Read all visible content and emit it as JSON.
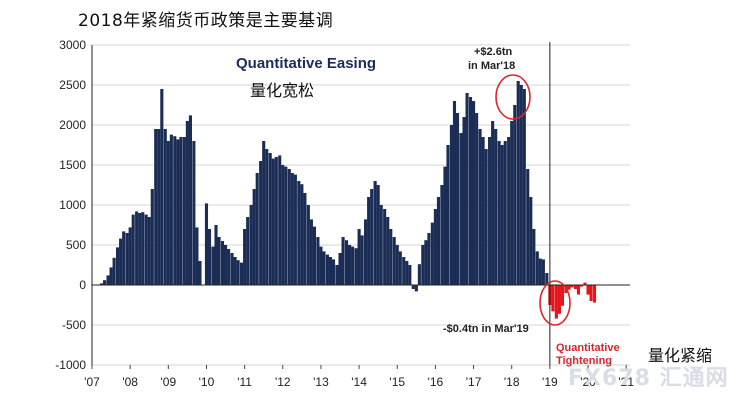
{
  "heading": "2018年紧缩货币政策是主要基调",
  "watermark": "FX678 汇通网",
  "colors": {
    "qe": "#1b2d55",
    "qt": "#e3161d",
    "circle": "#d9262b"
  },
  "chart_data": {
    "type": "bar",
    "ylim": [
      -1000,
      3000
    ],
    "yticks": [
      -1000,
      -500,
      0,
      500,
      1000,
      1500,
      2000,
      2500,
      3000
    ],
    "xlim": [
      2007,
      2021.1
    ],
    "xticks": [
      "'07",
      "'08",
      "'09",
      "'10",
      "'11",
      "'12",
      "'13",
      "'14",
      "'15",
      "'16",
      "'17",
      "'18",
      "'19",
      "'20",
      "'21"
    ],
    "grid": true,
    "annotations": {
      "qe_title": "Quantitative Easing",
      "qe_cn": "量化宽松",
      "peak_line1": "+$2.6tn",
      "peak_line2": "in Mar'18",
      "trough": "-$0.4tn in Mar'19",
      "qt_line1": "Quantitative",
      "qt_line2": "Tightening",
      "qt_cn": "量化紧缩"
    },
    "qe_series": [
      [
        2007.25,
        20
      ],
      [
        2007.33,
        60
      ],
      [
        2007.42,
        120
      ],
      [
        2007.5,
        220
      ],
      [
        2007.58,
        340
      ],
      [
        2007.67,
        470
      ],
      [
        2007.75,
        580
      ],
      [
        2007.83,
        670
      ],
      [
        2007.92,
        650
      ],
      [
        2008.0,
        720
      ],
      [
        2008.08,
        880
      ],
      [
        2008.17,
        920
      ],
      [
        2008.25,
        900
      ],
      [
        2008.33,
        910
      ],
      [
        2008.42,
        880
      ],
      [
        2008.5,
        850
      ],
      [
        2008.58,
        1200
      ],
      [
        2008.67,
        1950
      ],
      [
        2008.75,
        1950
      ],
      [
        2008.83,
        2450
      ],
      [
        2008.92,
        1950
      ],
      [
        2009.0,
        1800
      ],
      [
        2009.08,
        1880
      ],
      [
        2009.17,
        1860
      ],
      [
        2009.25,
        1820
      ],
      [
        2009.33,
        1850
      ],
      [
        2009.42,
        1850
      ],
      [
        2009.5,
        2050
      ],
      [
        2009.58,
        2120
      ],
      [
        2009.67,
        1800
      ],
      [
        2009.75,
        720
      ],
      [
        2009.83,
        300
      ],
      [
        2010.0,
        1020
      ],
      [
        2010.08,
        700
      ],
      [
        2010.17,
        480
      ],
      [
        2010.25,
        750
      ],
      [
        2010.33,
        600
      ],
      [
        2010.42,
        550
      ],
      [
        2010.5,
        500
      ],
      [
        2010.58,
        450
      ],
      [
        2010.67,
        400
      ],
      [
        2010.75,
        350
      ],
      [
        2010.83,
        310
      ],
      [
        2010.92,
        280
      ],
      [
        2011.0,
        700
      ],
      [
        2011.08,
        850
      ],
      [
        2011.17,
        1000
      ],
      [
        2011.25,
        1200
      ],
      [
        2011.33,
        1400
      ],
      [
        2011.42,
        1550
      ],
      [
        2011.5,
        1800
      ],
      [
        2011.58,
        1700
      ],
      [
        2011.67,
        1650
      ],
      [
        2011.75,
        1580
      ],
      [
        2011.83,
        1600
      ],
      [
        2011.92,
        1620
      ],
      [
        2012.0,
        1500
      ],
      [
        2012.08,
        1480
      ],
      [
        2012.17,
        1450
      ],
      [
        2012.25,
        1400
      ],
      [
        2012.33,
        1380
      ],
      [
        2012.42,
        1300
      ],
      [
        2012.5,
        1260
      ],
      [
        2012.58,
        1150
      ],
      [
        2012.67,
        1000
      ],
      [
        2012.75,
        820
      ],
      [
        2012.83,
        730
      ],
      [
        2012.92,
        600
      ],
      [
        2013.0,
        480
      ],
      [
        2013.08,
        420
      ],
      [
        2013.17,
        380
      ],
      [
        2013.25,
        350
      ],
      [
        2013.33,
        320
      ],
      [
        2013.42,
        250
      ],
      [
        2013.5,
        400
      ],
      [
        2013.58,
        600
      ],
      [
        2013.67,
        560
      ],
      [
        2013.75,
        500
      ],
      [
        2013.83,
        480
      ],
      [
        2013.92,
        460
      ],
      [
        2014.0,
        700
      ],
      [
        2014.08,
        620
      ],
      [
        2014.17,
        820
      ],
      [
        2014.25,
        1100
      ],
      [
        2014.33,
        1200
      ],
      [
        2014.42,
        1300
      ],
      [
        2014.5,
        1250
      ],
      [
        2014.58,
        1000
      ],
      [
        2014.67,
        950
      ],
      [
        2014.75,
        850
      ],
      [
        2014.83,
        700
      ],
      [
        2014.92,
        600
      ],
      [
        2015.0,
        500
      ],
      [
        2015.08,
        420
      ],
      [
        2015.17,
        350
      ],
      [
        2015.25,
        300
      ],
      [
        2015.33,
        250
      ],
      [
        2015.42,
        -50
      ],
      [
        2015.5,
        -80
      ],
      [
        2015.58,
        260
      ],
      [
        2015.67,
        500
      ],
      [
        2015.75,
        560
      ],
      [
        2015.83,
        650
      ],
      [
        2015.92,
        780
      ],
      [
        2016.0,
        950
      ],
      [
        2016.08,
        1100
      ],
      [
        2016.17,
        1250
      ],
      [
        2016.25,
        1480
      ],
      [
        2016.33,
        1750
      ],
      [
        2016.42,
        2000
      ],
      [
        2016.5,
        2300
      ],
      [
        2016.58,
        2150
      ],
      [
        2016.67,
        1900
      ],
      [
        2016.75,
        2100
      ],
      [
        2016.83,
        2400
      ],
      [
        2016.92,
        2350
      ],
      [
        2017.0,
        2300
      ],
      [
        2017.08,
        2150
      ],
      [
        2017.17,
        1950
      ],
      [
        2017.25,
        1850
      ],
      [
        2017.33,
        1700
      ],
      [
        2017.42,
        1850
      ],
      [
        2017.5,
        2050
      ],
      [
        2017.58,
        1950
      ],
      [
        2017.67,
        1800
      ],
      [
        2017.75,
        1750
      ],
      [
        2017.83,
        1800
      ],
      [
        2017.92,
        1850
      ],
      [
        2018.0,
        2050
      ],
      [
        2018.08,
        2250
      ],
      [
        2018.17,
        2550
      ],
      [
        2018.25,
        2500
      ],
      [
        2018.33,
        2450
      ],
      [
        2018.42,
        1450
      ],
      [
        2018.5,
        1100
      ],
      [
        2018.58,
        700
      ],
      [
        2018.67,
        420
      ],
      [
        2018.75,
        330
      ],
      [
        2018.83,
        320
      ],
      [
        2018.92,
        150
      ]
    ],
    "qt_series": [
      [
        2019.0,
        -250
      ],
      [
        2019.08,
        -330
      ],
      [
        2019.17,
        -420
      ],
      [
        2019.25,
        -360
      ],
      [
        2019.33,
        -260
      ],
      [
        2019.42,
        -100
      ],
      [
        2019.5,
        -60
      ],
      [
        2019.58,
        -30
      ],
      [
        2019.67,
        -50
      ],
      [
        2019.75,
        -120
      ],
      [
        2019.83,
        -20
      ],
      [
        2019.92,
        30
      ],
      [
        2020.0,
        -120
      ],
      [
        2020.08,
        -200
      ],
      [
        2020.17,
        -220
      ]
    ]
  }
}
